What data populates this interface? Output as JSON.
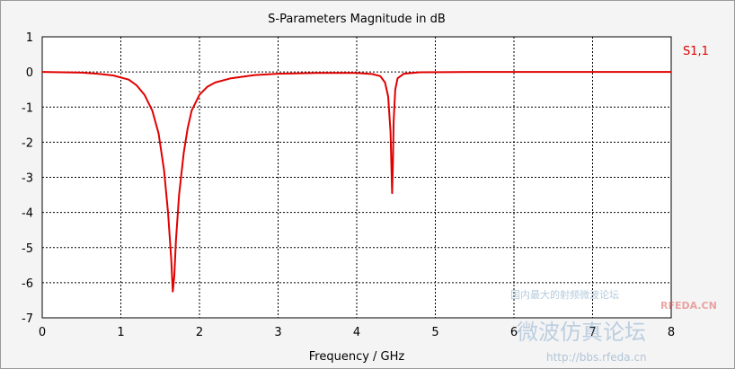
{
  "chart_data": {
    "type": "line",
    "title": "S-Parameters Magnitude in dB",
    "xlabel": "Frequency / GHz",
    "ylabel": "",
    "xlim": [
      0,
      8
    ],
    "ylim": [
      -7,
      1
    ],
    "xticks": [
      0,
      1,
      2,
      3,
      4,
      5,
      6,
      7,
      8
    ],
    "yticks": [
      1,
      0,
      -1,
      -2,
      -3,
      -4,
      -5,
      -6,
      -7
    ],
    "grid": true,
    "legend_position": "right",
    "series": [
      {
        "name": "S1,1",
        "color": "#e00000",
        "x": [
          0,
          0.5,
          0.7,
          0.9,
          1.1,
          1.2,
          1.3,
          1.4,
          1.48,
          1.55,
          1.6,
          1.64,
          1.66,
          1.68,
          1.7,
          1.74,
          1.8,
          1.85,
          1.9,
          2.0,
          2.1,
          2.2,
          2.4,
          2.7,
          3.0,
          3.5,
          4.0,
          4.2,
          4.3,
          4.36,
          4.4,
          4.43,
          4.45,
          4.46,
          4.47,
          4.49,
          4.52,
          4.6,
          4.8,
          5.5,
          6.5,
          8.0
        ],
        "y": [
          0,
          -0.02,
          -0.05,
          -0.1,
          -0.22,
          -0.38,
          -0.65,
          -1.1,
          -1.75,
          -2.8,
          -4.0,
          -5.3,
          -6.25,
          -5.8,
          -4.8,
          -3.5,
          -2.3,
          -1.6,
          -1.1,
          -0.65,
          -0.42,
          -0.3,
          -0.18,
          -0.09,
          -0.05,
          -0.03,
          -0.03,
          -0.06,
          -0.12,
          -0.3,
          -0.7,
          -1.7,
          -3.45,
          -2.6,
          -1.4,
          -0.5,
          -0.18,
          -0.05,
          -0.01,
          0,
          0,
          0
        ]
      }
    ]
  },
  "watermark": {
    "line1": "国内最大的射频微波论坛",
    "logo": "RFEDA.CN",
    "line2": "微波仿真论坛",
    "url": "http://bbs.rfeda.cn"
  }
}
